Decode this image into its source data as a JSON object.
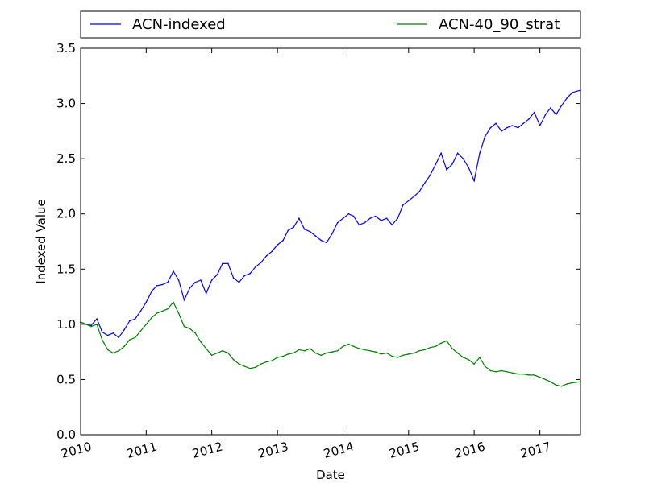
{
  "chart_data": {
    "type": "line",
    "title": "",
    "xlabel": "Date",
    "ylabel": "Indexed Value",
    "xlim": [
      "2010-01-01",
      "2017-08-15"
    ],
    "ylim": [
      0.0,
      3.5
    ],
    "x_ticks": [
      "2010",
      "2011",
      "2012",
      "2013",
      "2014",
      "2015",
      "2016",
      "2017"
    ],
    "y_ticks": [
      "0.0",
      "0.5",
      "1.0",
      "1.5",
      "2.0",
      "2.5",
      "3.0",
      "3.5"
    ],
    "grid": false,
    "legend_position": "top",
    "series": [
      {
        "name": "ACN-indexed",
        "color": "#0000ff",
        "points": [
          [
            "2010-01-01",
            1.02
          ],
          [
            "2010-02-01",
            1.0
          ],
          [
            "2010-03-01",
            0.99
          ],
          [
            "2010-04-01",
            1.05
          ],
          [
            "2010-05-01",
            0.93
          ],
          [
            "2010-06-01",
            0.9
          ],
          [
            "2010-07-01",
            0.92
          ],
          [
            "2010-08-01",
            0.88
          ],
          [
            "2010-09-01",
            0.95
          ],
          [
            "2010-10-01",
            1.03
          ],
          [
            "2010-11-01",
            1.05
          ],
          [
            "2010-12-01",
            1.12
          ],
          [
            "2011-01-01",
            1.2
          ],
          [
            "2011-02-01",
            1.3
          ],
          [
            "2011-03-01",
            1.35
          ],
          [
            "2011-04-01",
            1.36
          ],
          [
            "2011-05-01",
            1.38
          ],
          [
            "2011-06-01",
            1.48
          ],
          [
            "2011-07-01",
            1.4
          ],
          [
            "2011-08-01",
            1.22
          ],
          [
            "2011-09-01",
            1.33
          ],
          [
            "2011-10-01",
            1.38
          ],
          [
            "2011-11-01",
            1.4
          ],
          [
            "2011-12-01",
            1.28
          ],
          [
            "2012-01-01",
            1.4
          ],
          [
            "2012-02-01",
            1.45
          ],
          [
            "2012-03-01",
            1.55
          ],
          [
            "2012-04-01",
            1.55
          ],
          [
            "2012-05-01",
            1.42
          ],
          [
            "2012-06-01",
            1.38
          ],
          [
            "2012-07-01",
            1.44
          ],
          [
            "2012-08-01",
            1.46
          ],
          [
            "2012-09-01",
            1.52
          ],
          [
            "2012-10-01",
            1.56
          ],
          [
            "2012-11-01",
            1.62
          ],
          [
            "2012-12-01",
            1.66
          ],
          [
            "2013-01-01",
            1.72
          ],
          [
            "2013-02-01",
            1.76
          ],
          [
            "2013-03-01",
            1.85
          ],
          [
            "2013-04-01",
            1.88
          ],
          [
            "2013-05-01",
            1.96
          ],
          [
            "2013-06-01",
            1.86
          ],
          [
            "2013-07-01",
            1.84
          ],
          [
            "2013-08-01",
            1.8
          ],
          [
            "2013-09-01",
            1.76
          ],
          [
            "2013-10-01",
            1.74
          ],
          [
            "2013-11-01",
            1.82
          ],
          [
            "2013-12-01",
            1.92
          ],
          [
            "2014-01-01",
            1.96
          ],
          [
            "2014-02-01",
            2.0
          ],
          [
            "2014-03-01",
            1.98
          ],
          [
            "2014-04-01",
            1.9
          ],
          [
            "2014-05-01",
            1.92
          ],
          [
            "2014-06-01",
            1.96
          ],
          [
            "2014-07-01",
            1.98
          ],
          [
            "2014-08-01",
            1.94
          ],
          [
            "2014-09-01",
            1.96
          ],
          [
            "2014-10-01",
            1.9
          ],
          [
            "2014-11-01",
            1.96
          ],
          [
            "2014-12-01",
            2.08
          ],
          [
            "2015-01-01",
            2.12
          ],
          [
            "2015-02-01",
            2.16
          ],
          [
            "2015-03-01",
            2.2
          ],
          [
            "2015-04-01",
            2.28
          ],
          [
            "2015-05-01",
            2.35
          ],
          [
            "2015-06-01",
            2.45
          ],
          [
            "2015-07-01",
            2.55
          ],
          [
            "2015-08-01",
            2.4
          ],
          [
            "2015-09-01",
            2.45
          ],
          [
            "2015-10-01",
            2.55
          ],
          [
            "2015-11-01",
            2.5
          ],
          [
            "2015-12-01",
            2.42
          ],
          [
            "2016-01-01",
            2.3
          ],
          [
            "2016-02-01",
            2.55
          ],
          [
            "2016-03-01",
            2.7
          ],
          [
            "2016-04-01",
            2.78
          ],
          [
            "2016-05-01",
            2.82
          ],
          [
            "2016-06-01",
            2.75
          ],
          [
            "2016-07-01",
            2.78
          ],
          [
            "2016-08-01",
            2.8
          ],
          [
            "2016-09-01",
            2.78
          ],
          [
            "2016-10-01",
            2.82
          ],
          [
            "2016-11-01",
            2.86
          ],
          [
            "2016-12-01",
            2.92
          ],
          [
            "2017-01-01",
            2.8
          ],
          [
            "2017-02-01",
            2.9
          ],
          [
            "2017-03-01",
            2.96
          ],
          [
            "2017-04-01",
            2.9
          ],
          [
            "2017-05-01",
            2.98
          ],
          [
            "2017-06-01",
            3.05
          ],
          [
            "2017-07-01",
            3.1
          ],
          [
            "2017-08-15",
            3.12
          ]
        ]
      },
      {
        "name": "ACN-40_90_strat",
        "color": "#008000",
        "points": [
          [
            "2010-01-01",
            1.02
          ],
          [
            "2010-02-01",
            1.0
          ],
          [
            "2010-03-01",
            0.98
          ],
          [
            "2010-04-01",
            1.0
          ],
          [
            "2010-05-01",
            0.86
          ],
          [
            "2010-06-01",
            0.77
          ],
          [
            "2010-07-01",
            0.74
          ],
          [
            "2010-08-01",
            0.76
          ],
          [
            "2010-09-01",
            0.8
          ],
          [
            "2010-10-01",
            0.86
          ],
          [
            "2010-11-01",
            0.88
          ],
          [
            "2010-12-01",
            0.94
          ],
          [
            "2011-01-01",
            1.0
          ],
          [
            "2011-02-01",
            1.06
          ],
          [
            "2011-03-01",
            1.1
          ],
          [
            "2011-04-01",
            1.12
          ],
          [
            "2011-05-01",
            1.14
          ],
          [
            "2011-06-01",
            1.2
          ],
          [
            "2011-07-01",
            1.1
          ],
          [
            "2011-08-01",
            0.98
          ],
          [
            "2011-09-01",
            0.96
          ],
          [
            "2011-10-01",
            0.92
          ],
          [
            "2011-11-01",
            0.84
          ],
          [
            "2011-12-01",
            0.78
          ],
          [
            "2012-01-01",
            0.72
          ],
          [
            "2012-02-01",
            0.74
          ],
          [
            "2012-03-01",
            0.76
          ],
          [
            "2012-04-01",
            0.74
          ],
          [
            "2012-05-01",
            0.68
          ],
          [
            "2012-06-01",
            0.64
          ],
          [
            "2012-07-01",
            0.62
          ],
          [
            "2012-08-01",
            0.6
          ],
          [
            "2012-09-01",
            0.61
          ],
          [
            "2012-10-01",
            0.64
          ],
          [
            "2012-11-01",
            0.66
          ],
          [
            "2012-12-01",
            0.67
          ],
          [
            "2013-01-01",
            0.7
          ],
          [
            "2013-02-01",
            0.71
          ],
          [
            "2013-03-01",
            0.73
          ],
          [
            "2013-04-01",
            0.74
          ],
          [
            "2013-05-01",
            0.77
          ],
          [
            "2013-06-01",
            0.76
          ],
          [
            "2013-07-01",
            0.78
          ],
          [
            "2013-08-01",
            0.74
          ],
          [
            "2013-09-01",
            0.72
          ],
          [
            "2013-10-01",
            0.74
          ],
          [
            "2013-11-01",
            0.75
          ],
          [
            "2013-12-01",
            0.76
          ],
          [
            "2014-01-01",
            0.8
          ],
          [
            "2014-02-01",
            0.82
          ],
          [
            "2014-03-01",
            0.8
          ],
          [
            "2014-04-01",
            0.78
          ],
          [
            "2014-05-01",
            0.77
          ],
          [
            "2014-06-01",
            0.76
          ],
          [
            "2014-07-01",
            0.75
          ],
          [
            "2014-08-01",
            0.73
          ],
          [
            "2014-09-01",
            0.74
          ],
          [
            "2014-10-01",
            0.71
          ],
          [
            "2014-11-01",
            0.7
          ],
          [
            "2014-12-01",
            0.72
          ],
          [
            "2015-01-01",
            0.73
          ],
          [
            "2015-02-01",
            0.74
          ],
          [
            "2015-03-01",
            0.76
          ],
          [
            "2015-04-01",
            0.77
          ],
          [
            "2015-05-01",
            0.79
          ],
          [
            "2015-06-01",
            0.8
          ],
          [
            "2015-07-01",
            0.83
          ],
          [
            "2015-08-01",
            0.85
          ],
          [
            "2015-09-01",
            0.78
          ],
          [
            "2015-10-01",
            0.74
          ],
          [
            "2015-11-01",
            0.7
          ],
          [
            "2015-12-01",
            0.68
          ],
          [
            "2016-01-01",
            0.64
          ],
          [
            "2016-02-01",
            0.7
          ],
          [
            "2016-03-01",
            0.62
          ],
          [
            "2016-04-01",
            0.58
          ],
          [
            "2016-05-01",
            0.57
          ],
          [
            "2016-06-01",
            0.58
          ],
          [
            "2016-07-01",
            0.57
          ],
          [
            "2016-08-01",
            0.56
          ],
          [
            "2016-09-01",
            0.55
          ],
          [
            "2016-10-01",
            0.55
          ],
          [
            "2016-11-01",
            0.54
          ],
          [
            "2016-12-01",
            0.54
          ],
          [
            "2017-01-01",
            0.52
          ],
          [
            "2017-02-01",
            0.5
          ],
          [
            "2017-03-01",
            0.48
          ],
          [
            "2017-04-01",
            0.45
          ],
          [
            "2017-05-01",
            0.44
          ],
          [
            "2017-06-01",
            0.46
          ],
          [
            "2017-07-01",
            0.47
          ],
          [
            "2017-08-15",
            0.48
          ]
        ]
      }
    ]
  }
}
